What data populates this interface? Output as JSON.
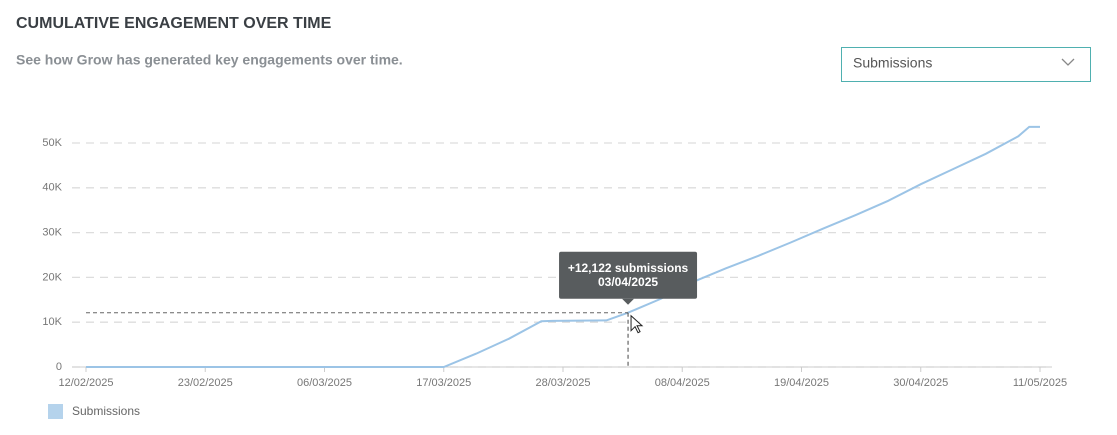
{
  "header": {
    "title": "CUMULATIVE ENGAGEMENT OVER TIME",
    "subtitle": "See how Grow has generated key engagements over time."
  },
  "dropdown": {
    "selected": "Submissions"
  },
  "tooltip": {
    "text": "+12,122 submissions",
    "date": "03/04/2025"
  },
  "chart_data": {
    "type": "line",
    "x": [
      "12/02/2025",
      "17/03/2025",
      "20/03/2025",
      "23/03/2025",
      "26/03/2025",
      "27/03/2025",
      "01/04/2025",
      "03/04/2025",
      "06/04/2025",
      "09/04/2025",
      "12/04/2025",
      "15/04/2025",
      "18/04/2025",
      "21/04/2025",
      "24/04/2025",
      "27/04/2025",
      "30/04/2025",
      "03/05/2025",
      "06/05/2025",
      "09/05/2025",
      "10/05/2025",
      "11/05/2025"
    ],
    "series": [
      {
        "name": "Submissions",
        "color": "#9cc4e6",
        "values": [
          0,
          0,
          3000,
          6300,
          10200,
          10300,
          10400,
          12122,
          15200,
          19000,
          22000,
          24800,
          27800,
          30900,
          33900,
          37100,
          40800,
          44200,
          47600,
          51500,
          53600,
          53600
        ]
      }
    ],
    "xlim": [
      "12/02/2025",
      "11/05/2025"
    ],
    "xticks": [
      "12/02/2025",
      "23/02/2025",
      "06/03/2025",
      "17/03/2025",
      "28/03/2025",
      "08/04/2025",
      "19/04/2025",
      "30/04/2025",
      "11/05/2025"
    ],
    "ylim": [
      0,
      55000
    ],
    "yticks": [
      0,
      {
        "value": 10000,
        "label": "10K"
      },
      {
        "value": 20000,
        "label": "20K"
      },
      {
        "value": 30000,
        "label": "30K"
      },
      {
        "value": 40000,
        "label": "40K"
      },
      {
        "value": 50000,
        "label": "50K"
      }
    ],
    "grid": true
  }
}
